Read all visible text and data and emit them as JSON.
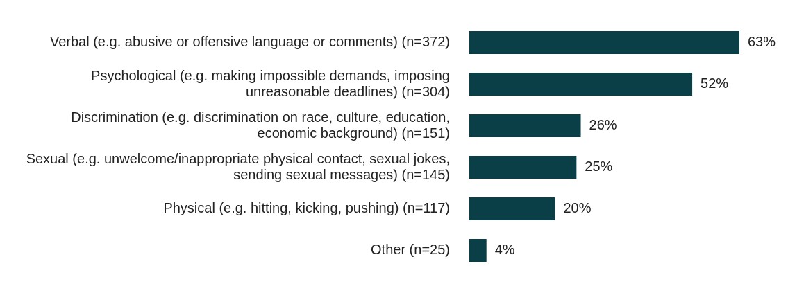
{
  "chart_data": {
    "type": "bar",
    "orientation": "horizontal",
    "categories": [
      "Verbal (e.g. abusive or offensive language or comments) (n=372)",
      "Psychological (e.g. making impossible demands, imposing unreasonable deadlines) (n=304)",
      "Discrimination (e.g. discrimination on race, culture, education, economic background) (n=151)",
      "Sexual (e.g. unwelcome/inappropriate physical contact, sexual jokes, sending sexual messages) (n=145)",
      "Physical (e.g. hitting, kicking, pushing) (n=117)",
      "Other (n=25)"
    ],
    "values": [
      63,
      52,
      26,
      25,
      20,
      4
    ],
    "value_labels": [
      "63%",
      "52%",
      "26%",
      "25%",
      "20%",
      "4%"
    ],
    "color": "#0b3f48",
    "legend": false
  }
}
